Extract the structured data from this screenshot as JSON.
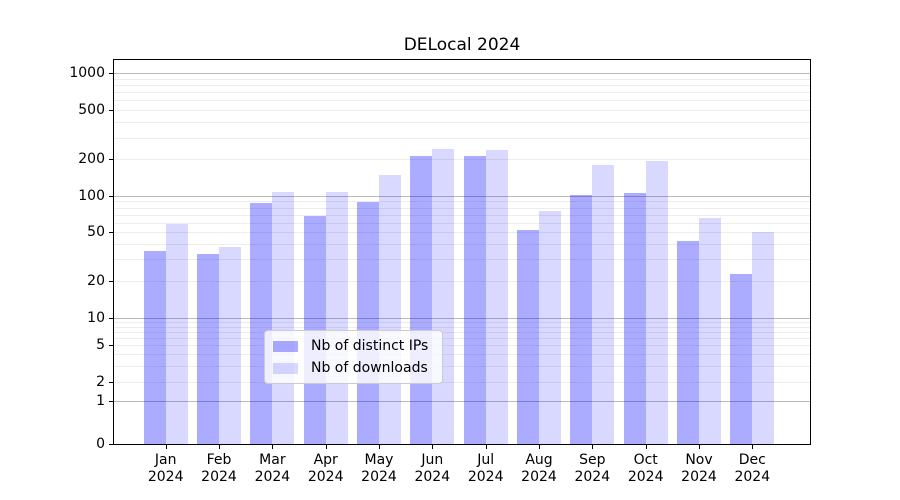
{
  "title": "DELocal 2024",
  "chart_data": {
    "type": "bar",
    "title": "DELocal 2024",
    "x_categories": [
      "Jan 2024",
      "Feb 2024",
      "Mar 2024",
      "Apr 2024",
      "May 2024",
      "Jun 2024",
      "Jul 2024",
      "Aug 2024",
      "Sep 2024",
      "Oct 2024",
      "Nov 2024",
      "Dec 2024"
    ],
    "x_tick_months": [
      "Jan",
      "Feb",
      "Mar",
      "Apr",
      "May",
      "Jun",
      "Jul",
      "Aug",
      "Sep",
      "Oct",
      "Nov",
      "Dec"
    ],
    "x_tick_year": "2024",
    "series": [
      {
        "name": "Nb of distinct IPs",
        "color": "rgba(0,0,255,0.33)",
        "values": [
          35,
          33,
          88,
          68,
          90,
          215,
          215,
          52,
          102,
          105,
          42,
          23
        ]
      },
      {
        "name": "Nb of downloads",
        "color": "rgba(0,0,255,0.15)",
        "values": [
          58,
          38,
          107,
          107,
          150,
          245,
          240,
          75,
          180,
          193,
          65,
          50
        ]
      }
    ],
    "y_axis": {
      "scale": "symlog",
      "tick_labels": [
        "0",
        "1",
        "2",
        "5",
        "10",
        "20",
        "50",
        "100",
        "200",
        "500",
        "1000"
      ],
      "tick_values": [
        0,
        1,
        2,
        5,
        10,
        20,
        50,
        100,
        200,
        500,
        1000
      ],
      "ylim": [
        0,
        1300
      ],
      "grid": true
    },
    "legend": {
      "position": "lower center",
      "entries": [
        "Nb of distinct IPs",
        "Nb of downloads"
      ]
    }
  }
}
